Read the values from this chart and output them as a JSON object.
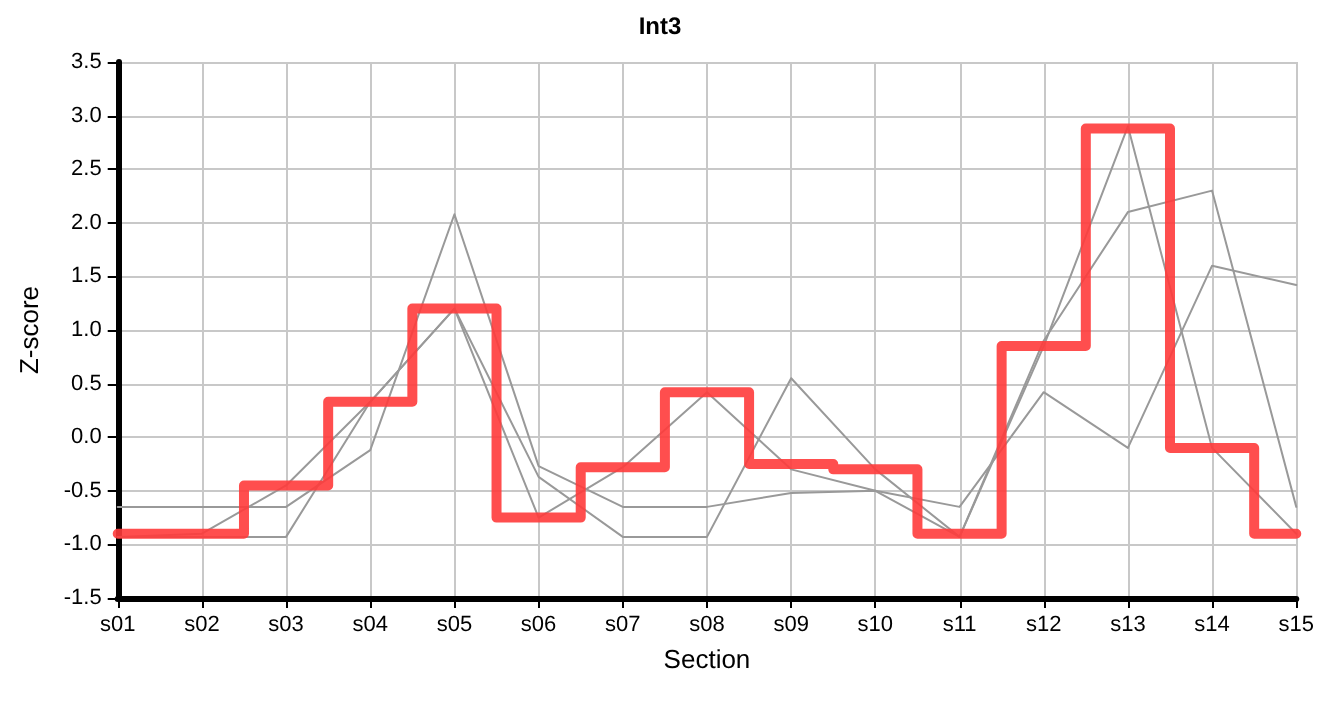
{
  "chart_data": {
    "type": "line",
    "title": "Int3",
    "xlabel": "Section",
    "ylabel": "Z-score",
    "categories": [
      "s01",
      "s02",
      "s03",
      "s04",
      "s05",
      "s06",
      "s07",
      "s08",
      "s09",
      "s10",
      "s11",
      "s12",
      "s13",
      "s14",
      "s15"
    ],
    "series": [
      {
        "color": "#999999",
        "values": [
          -0.65,
          -0.65,
          -0.65,
          -0.12,
          2.08,
          -0.27,
          -0.65,
          -0.65,
          -0.52,
          -0.5,
          -0.65,
          0.42,
          -0.1,
          1.6,
          1.42
        ]
      },
      {
        "color": "#999999",
        "values": [
          -0.93,
          -0.93,
          -0.93,
          0.33,
          1.2,
          -0.75,
          -0.28,
          0.42,
          -0.3,
          -0.5,
          -0.93,
          0.85,
          2.9,
          -0.1,
          -0.9
        ]
      },
      {
        "color": "#999999",
        "values": [
          -0.93,
          -0.9,
          -0.45,
          0.33,
          1.2,
          -0.37,
          -0.93,
          -0.93,
          0.55,
          -0.3,
          -0.93,
          0.9,
          2.1,
          2.3,
          -0.65
        ]
      },
      {
        "type": "step",
        "color": "#ff3b3b",
        "values": [
          -0.9,
          -0.9,
          -0.45,
          0.33,
          1.2,
          -0.75,
          -0.28,
          0.42,
          -0.25,
          -0.3,
          -0.9,
          0.85,
          2.88,
          -0.1,
          -0.9
        ]
      }
    ],
    "ylim": [
      -1.5,
      3.5
    ],
    "yticks": [
      -1.5,
      {
        "value": -1,
        "label": "-1.0"
      },
      -0.5,
      {
        "value": 0,
        "label": "0.0"
      },
      0.5,
      {
        "value": 1,
        "label": "1.0"
      },
      1.5,
      {
        "value": 2,
        "label": "2.0"
      },
      2.5,
      {
        "value": 3,
        "label": "3.0"
      },
      3.5
    ],
    "grid": true,
    "marker": "none"
  }
}
